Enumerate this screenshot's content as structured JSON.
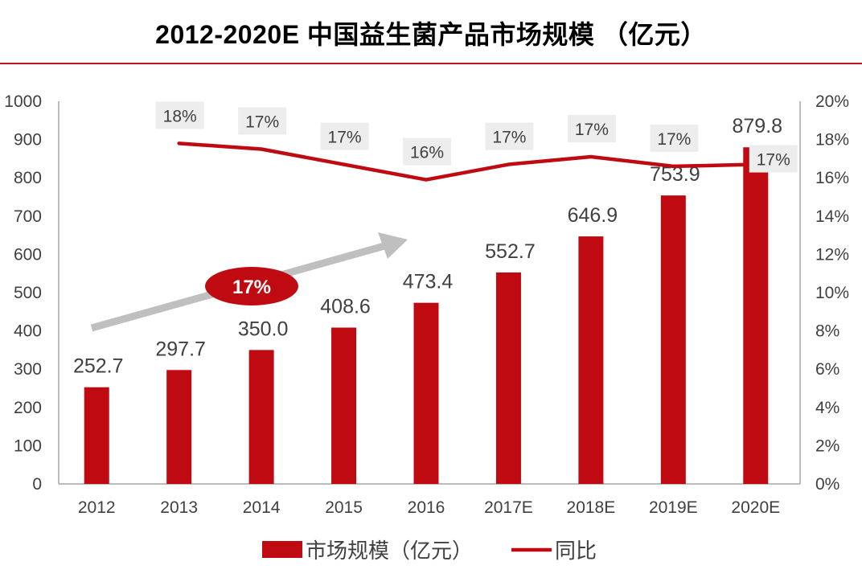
{
  "title": "2012-2020E 中国益生菌产品市场规模 （亿元）",
  "chart_data": {
    "type": "bar",
    "categories": [
      "2012",
      "2013",
      "2014",
      "2015",
      "2016",
      "2017E",
      "2018E",
      "2019E",
      "2020E"
    ],
    "series": [
      {
        "name": "市场规模（亿元）",
        "type": "bar",
        "axis": "left",
        "color": "#c00a12",
        "values": [
          252.7,
          297.7,
          350.0,
          408.6,
          473.4,
          552.7,
          646.9,
          753.9,
          879.8
        ],
        "labels": [
          "252.7",
          "297.7",
          "350.0",
          "408.6",
          "473.4",
          "552.7",
          "646.9",
          "753.9",
          "879.8"
        ]
      },
      {
        "name": "同比",
        "type": "line",
        "axis": "right",
        "color": "#c00a12",
        "values": [
          null,
          17.8,
          17.5,
          16.7,
          15.9,
          16.7,
          17.1,
          16.6,
          16.7
        ],
        "labels": [
          "",
          "18%",
          "17%",
          "17%",
          "16%",
          "17%",
          "17%",
          "17%",
          "17%"
        ]
      }
    ],
    "y_left": {
      "min": 0,
      "max": 1000,
      "ticks": [
        "0",
        "100",
        "200",
        "300",
        "400",
        "500",
        "600",
        "700",
        "800",
        "900",
        "1000"
      ]
    },
    "y_right": {
      "min": 0,
      "max": 20,
      "ticks": [
        "0%",
        "2%",
        "4%",
        "6%",
        "8%",
        "10%",
        "12%",
        "14%",
        "16%",
        "18%",
        "20%"
      ]
    },
    "annotation": {
      "text": "17%",
      "kind": "cagr-arrow"
    },
    "legend": {
      "placement": "bottom"
    }
  }
}
